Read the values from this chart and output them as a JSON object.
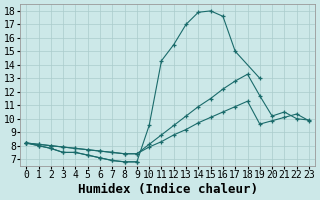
{
  "xlabel": "Humidex (Indice chaleur)",
  "bg_color": "#cce8e8",
  "line_color": "#1a6b6b",
  "xlim": [
    -0.5,
    23.5
  ],
  "ylim": [
    6.5,
    18.5
  ],
  "xticks": [
    0,
    1,
    2,
    3,
    4,
    5,
    6,
    7,
    8,
    9,
    10,
    11,
    12,
    13,
    14,
    15,
    16,
    17,
    18,
    19,
    20,
    21,
    22,
    23
  ],
  "yticks": [
    7,
    8,
    9,
    10,
    11,
    12,
    13,
    14,
    15,
    16,
    17,
    18
  ],
  "grid_color": "#aacccc",
  "font_family": "monospace",
  "xlabel_fontsize": 9,
  "tick_fontsize": 7,
  "series_x": [
    [
      0,
      1,
      2,
      3,
      4,
      5,
      6,
      7,
      8,
      9,
      10,
      11,
      12,
      13,
      14,
      15,
      16,
      17,
      19
    ],
    [
      0,
      1,
      2,
      3,
      4,
      5,
      6,
      7,
      8,
      9,
      10,
      11,
      12,
      13,
      14,
      15,
      16,
      17,
      18,
      19,
      20,
      21,
      22,
      23
    ],
    [
      0,
      1,
      2,
      3,
      4,
      5,
      6,
      7,
      8,
      9,
      10,
      11,
      12,
      13,
      14,
      15,
      16,
      17,
      18,
      19,
      20,
      21,
      22,
      23
    ],
    [
      0,
      1,
      2,
      3,
      4,
      5,
      6,
      7,
      8,
      9
    ]
  ],
  "series_y": [
    [
      8.2,
      8.0,
      7.8,
      7.5,
      7.5,
      7.3,
      7.1,
      6.9,
      6.8,
      6.8,
      9.5,
      14.3,
      15.5,
      17.0,
      17.9,
      18.0,
      17.6,
      15.0,
      13.0
    ],
    [
      8.2,
      8.1,
      8.0,
      7.9,
      7.8,
      7.7,
      7.6,
      7.5,
      7.4,
      7.4,
      8.1,
      8.8,
      9.5,
      10.2,
      10.9,
      11.5,
      12.2,
      12.8,
      13.3,
      11.7,
      10.2,
      10.5,
      10.0,
      9.9
    ],
    [
      8.2,
      8.1,
      8.0,
      7.9,
      7.8,
      7.7,
      7.6,
      7.5,
      7.4,
      7.4,
      7.9,
      8.3,
      8.8,
      9.2,
      9.7,
      10.1,
      10.5,
      10.9,
      11.3,
      9.6,
      9.85,
      10.1,
      10.35,
      9.85
    ],
    [
      8.2,
      8.0,
      7.8,
      7.5,
      7.5,
      7.3,
      7.1,
      6.9,
      6.8,
      6.8
    ]
  ]
}
